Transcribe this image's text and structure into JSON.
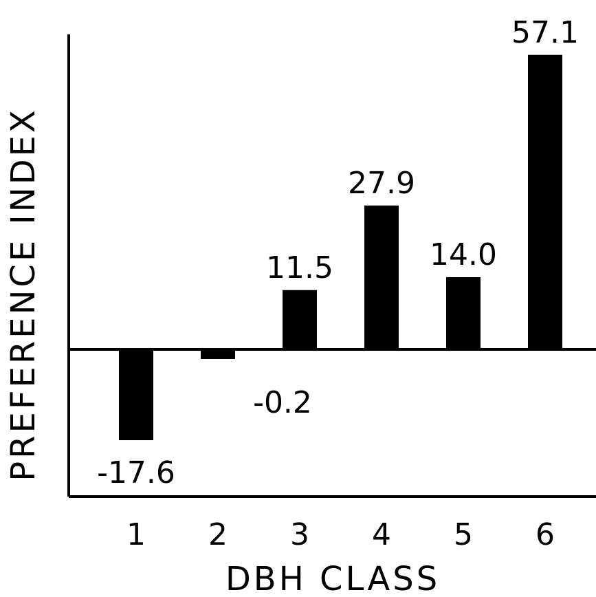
{
  "chart_data": {
    "type": "bar",
    "categories": [
      "1",
      "2",
      "3",
      "4",
      "5",
      "6"
    ],
    "values": [
      -17.6,
      -0.2,
      11.5,
      27.9,
      14.0,
      57.1
    ],
    "value_labels": [
      "-17.6",
      "-0.2",
      "11.5",
      "27.9",
      "14.0",
      "57.1"
    ],
    "title": "",
    "xlabel": "DBH CLASS",
    "ylabel": "PREFERENCE INDEX",
    "ylim": [
      -28,
      62
    ],
    "grid": false,
    "legend": "none",
    "bar_color": "#000000"
  }
}
